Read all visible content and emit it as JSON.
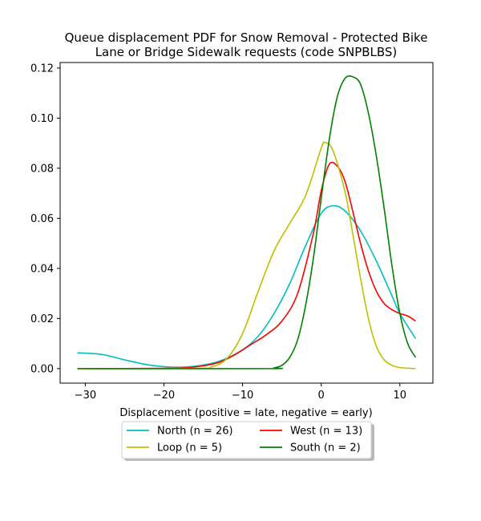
{
  "chart_data": {
    "type": "line",
    "title_lines": [
      "Queue displacement PDF for Snow Removal - Protected Bike",
      "Lane or Bridge Sidewalk  requests (code SNPBLBS)"
    ],
    "xlabel": "Displacement (positive = late, negative = early)",
    "ylabel": "",
    "xlim": [
      -33.2,
      14.2
    ],
    "ylim": [
      -0.0058,
      0.1222
    ],
    "xticks": [
      -30,
      -20,
      -10,
      0,
      10
    ],
    "xtick_labels": [
      "−30",
      "−20",
      "−10",
      "0",
      "10"
    ],
    "yticks": [
      0.0,
      0.02,
      0.04,
      0.06,
      0.08,
      0.1,
      0.12
    ],
    "ytick_labels": [
      "0.00",
      "0.02",
      "0.04",
      "0.06",
      "0.08",
      "0.10",
      "0.12"
    ],
    "grid": false,
    "legend": {
      "placement": "below",
      "columns": 2
    },
    "series": [
      {
        "name": "North (n = 26)",
        "color": "#00bfbf",
        "x": [
          -31,
          -28,
          -25,
          -22,
          -19,
          -16,
          -13,
          -10,
          -8,
          -6,
          -4,
          -2,
          0,
          1.5,
          3,
          5,
          7,
          9,
          10,
          12
        ],
        "y": [
          0.0063,
          0.0057,
          0.0035,
          0.0015,
          0.0006,
          0.001,
          0.0029,
          0.0075,
          0.013,
          0.022,
          0.034,
          0.049,
          0.062,
          0.065,
          0.063,
          0.055,
          0.043,
          0.029,
          0.022,
          0.012
        ]
      },
      {
        "name": "West (n = 13)",
        "color": "#ff0000",
        "x": [
          -31,
          -20,
          -16,
          -13,
          -11,
          -9,
          -7,
          -5,
          -3,
          -1,
          0,
          1,
          2,
          3,
          4,
          5,
          6,
          7,
          8,
          9,
          10,
          11,
          12
        ],
        "y": [
          0.0,
          0.0001,
          0.0007,
          0.0025,
          0.0055,
          0.0095,
          0.0135,
          0.019,
          0.03,
          0.054,
          0.071,
          0.0815,
          0.081,
          0.075,
          0.063,
          0.05,
          0.039,
          0.031,
          0.026,
          0.0235,
          0.022,
          0.021,
          0.019
        ]
      },
      {
        "name": "Loop (n = 5)",
        "color": "#bfbf00",
        "x": [
          -31,
          -16,
          -14,
          -12,
          -10,
          -8,
          -6,
          -4,
          -2,
          0,
          0.5,
          1.5,
          3,
          4,
          5,
          6,
          7,
          8,
          9,
          10,
          12
        ],
        "y": [
          0.0,
          0.0001,
          0.0006,
          0.004,
          0.014,
          0.031,
          0.047,
          0.058,
          0.069,
          0.088,
          0.0902,
          0.087,
          0.071,
          0.054,
          0.036,
          0.02,
          0.009,
          0.0035,
          0.0013,
          0.0004,
          0.0
        ]
      },
      {
        "name": "South (n = 2)",
        "color": "#008000",
        "x": [
          -31,
          -7,
          -6,
          -5,
          -4,
          -3,
          -2,
          -1,
          0,
          1,
          2,
          3,
          4,
          5,
          6,
          7,
          8,
          9,
          10,
          11,
          12
        ],
        "y": [
          0.0,
          0.0,
          0.0003,
          0.0013,
          0.0045,
          0.0115,
          0.025,
          0.044,
          0.068,
          0.091,
          0.108,
          0.1158,
          0.1165,
          0.1135,
          0.102,
          0.085,
          0.064,
          0.041,
          0.022,
          0.01,
          0.0045
        ]
      }
    ]
  }
}
